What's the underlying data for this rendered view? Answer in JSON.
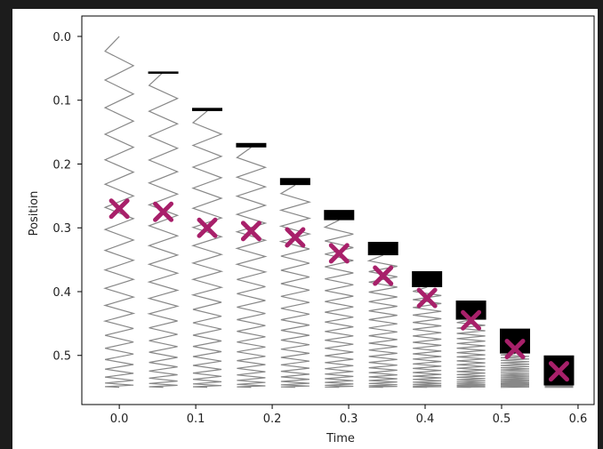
{
  "chart_data": {
    "type": "spring",
    "x_label": "Time",
    "y_label": "Position",
    "x": [
      0,
      0.0575,
      0.115,
      0.1725,
      0.23,
      0.2875,
      0.345,
      0.4025,
      0.46,
      0.5175,
      0.575
    ],
    "spring_top": [
      0,
      0.056,
      0.117,
      0.174,
      0.233,
      0.288,
      0.343,
      0.393,
      0.444,
      0.497,
      0.547
    ],
    "spring_base": 0.55,
    "block_top": [
      null,
      0.055,
      0.112,
      0.167,
      0.222,
      0.272,
      0.322,
      0.368,
      0.414,
      0.458,
      0.5
    ],
    "block_bottom": [
      null,
      0.056,
      0.117,
      0.174,
      0.233,
      0.288,
      0.343,
      0.393,
      0.444,
      0.497,
      0.547
    ],
    "block_color": "#000000",
    "spring_color": "#888888",
    "markers": [
      0.27,
      0.275,
      0.3,
      0.305,
      0.315,
      0.34,
      0.375,
      0.41,
      0.445,
      0.49,
      0.525
    ],
    "marker_color": "#a8206a",
    "xlim": [
      -0.049,
      0.621
    ],
    "ylim": [
      0.577,
      -0.032
    ],
    "xticks": [
      {
        "value": 0,
        "label": "0.0"
      },
      {
        "value": 0.1,
        "label": "0.1"
      },
      {
        "value": 0.2,
        "label": "0.2"
      },
      {
        "value": 0.3,
        "label": "0.3"
      },
      {
        "value": 0.4,
        "label": "0.4"
      },
      {
        "value": 0.5,
        "label": "0.5"
      },
      {
        "value": 0.6,
        "label": "0.6"
      }
    ],
    "yticks": [
      {
        "value": 0,
        "label": "0.0"
      },
      {
        "value": 0.1,
        "label": "0.1"
      },
      {
        "value": 0.2,
        "label": "0.2"
      },
      {
        "value": 0.3,
        "label": "0.3"
      },
      {
        "value": 0.4,
        "label": "0.4"
      },
      {
        "value": 0.5,
        "label": "0.5"
      }
    ]
  }
}
